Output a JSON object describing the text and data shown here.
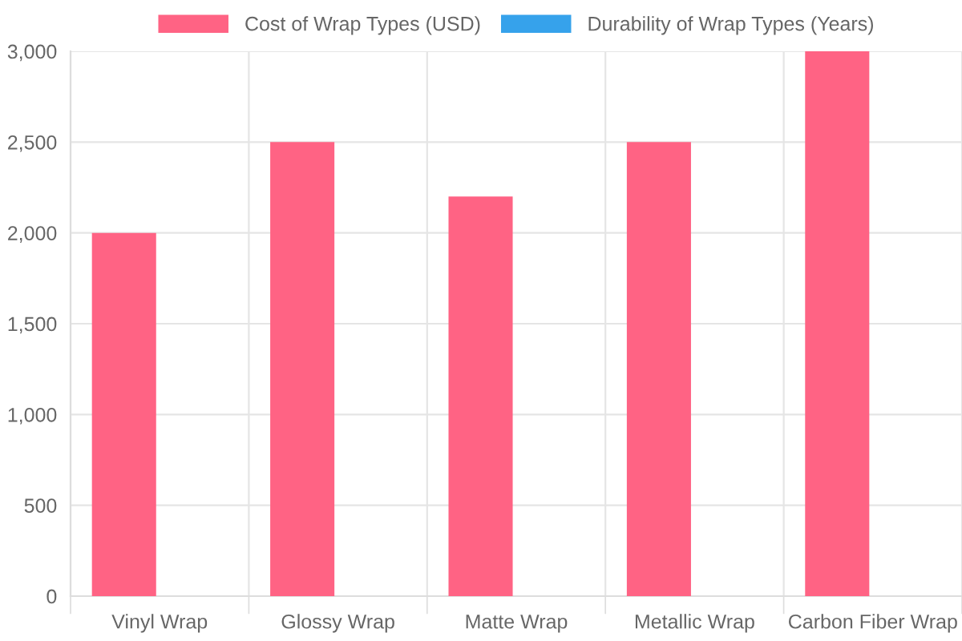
{
  "chart_data": {
    "type": "bar",
    "categories": [
      "Vinyl Wrap",
      "Glossy Wrap",
      "Matte Wrap",
      "Metallic Wrap",
      "Carbon Fiber Wrap"
    ],
    "series": [
      {
        "name": "Cost of Wrap Types (USD)",
        "color": "#ff6384",
        "values": [
          2000,
          2500,
          2200,
          2500,
          3000
        ]
      },
      {
        "name": "Durability of Wrap Types (Years)",
        "color": "#36a2eb",
        "values": [
          0,
          0,
          0,
          0,
          0
        ]
      }
    ],
    "ylim": [
      0,
      3000
    ],
    "yticks": [
      {
        "value": 0,
        "label": "0"
      },
      {
        "value": 500,
        "label": "500"
      },
      {
        "value": 1000,
        "label": "1,000"
      },
      {
        "value": 1500,
        "label": "1,500"
      },
      {
        "value": 2000,
        "label": "2,000"
      },
      {
        "value": 2500,
        "label": "2,500"
      },
      {
        "value": 3000,
        "label": "3,000"
      }
    ],
    "grid": true,
    "legend": "top"
  }
}
